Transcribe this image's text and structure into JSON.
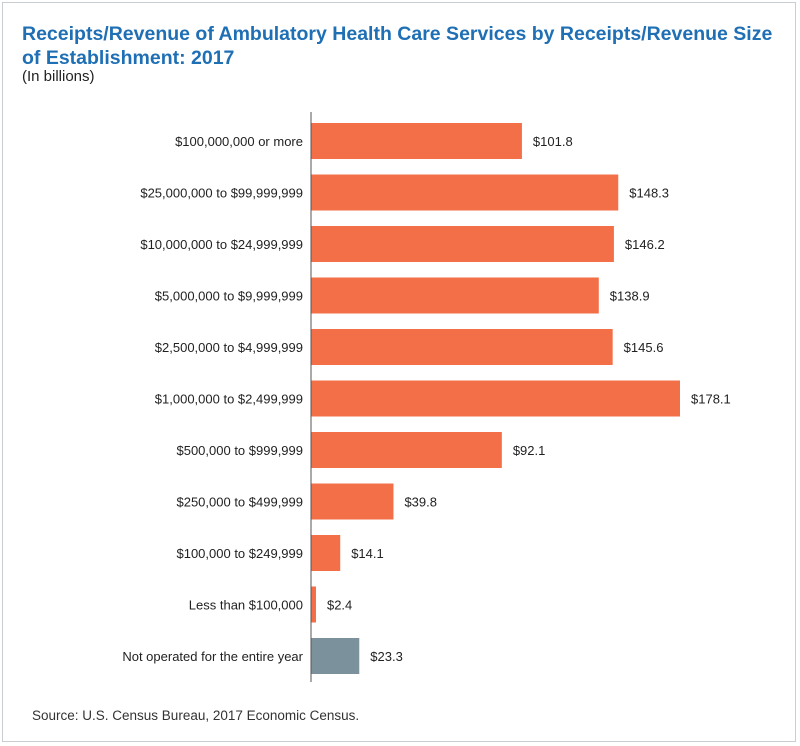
{
  "title": "Receipts/Revenue of Ambulatory Health Care Services by Receipts/Revenue Size of Establishment: 2017",
  "subtitle": "(In billions)",
  "source": "Source: U.S. Census Bureau, 2017 Economic Census.",
  "chart_data": {
    "type": "bar",
    "orientation": "horizontal",
    "title": "Receipts/Revenue of Ambulatory Health Care Services by Receipts/Revenue Size of Establishment: 2017",
    "ylabel": "",
    "xlabel": "",
    "unit": "billions of dollars",
    "categories": [
      "$100,000,000 or more",
      "$25,000,000 to $99,999,999",
      "$10,000,000 to $24,999,999",
      "$5,000,000 to $9,999,999",
      "$2,500,000 to $4,999,999",
      "$1,000,000 to $2,499,999",
      "$500,000 to $999,999",
      "$250,000 to $499,999",
      "$100,000 to $249,999",
      "Less than $100,000",
      "Not operated for the entire year"
    ],
    "values": [
      101.8,
      148.3,
      146.2,
      138.9,
      145.6,
      178.1,
      92.1,
      39.8,
      14.1,
      2.4,
      23.3
    ],
    "labels": [
      "$101.8",
      "$148.3",
      "$146.2",
      "$138.9",
      "$145.6",
      "$178.1",
      "$92.1",
      "$39.8",
      "$14.1",
      "$2.4",
      "$23.3"
    ],
    "xlim": [
      0,
      178.1
    ],
    "colors": {
      "default": "#f26f47",
      "highlight": "#7b929c",
      "axis": "#555555",
      "title": "#1f6fb5"
    },
    "highlight_index": 10
  }
}
